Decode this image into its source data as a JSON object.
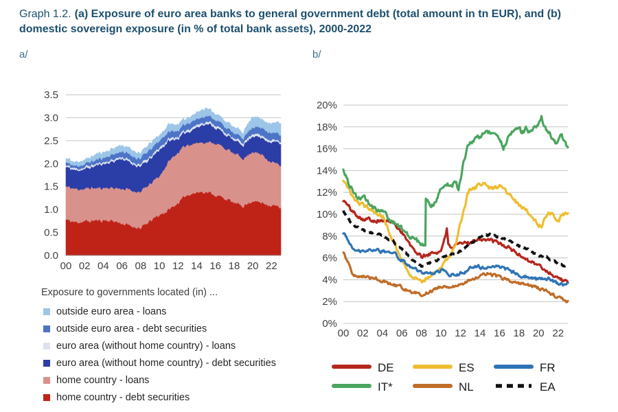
{
  "header": {
    "prefix": "Graph 1.2.",
    "title_bold": "(a) Exposure of euro area banks to general government debt (total amount in tn EUR), and (b) domestic sovereign exposure (in % of total bank assets), 2000-2022"
  },
  "panel_a_label": "a/",
  "panel_b_label": "b/",
  "chart_data": [
    {
      "id": "a",
      "type": "area",
      "stacked": true,
      "title": "Exposure of euro area banks to general government debt (total amount in tn EUR)",
      "x": [
        2000,
        2001,
        2002,
        2003,
        2004,
        2005,
        2006,
        2007,
        2008,
        2009,
        2010,
        2011,
        2012,
        2013,
        2014,
        2015,
        2016,
        2017,
        2018,
        2019,
        2020,
        2021,
        2022,
        2023
      ],
      "xtick_labels": [
        "00",
        "02",
        "04",
        "06",
        "08",
        "10",
        "12",
        "14",
        "16",
        "18",
        "20",
        "22"
      ],
      "ylim": [
        0,
        3.5
      ],
      "ytick_labels": [
        "0.0",
        "0.5",
        "1.0",
        "1.5",
        "2.0",
        "2.5",
        "3.0",
        "3.5"
      ],
      "grid": true,
      "legend_title": "Exposure to governments located (in) ...",
      "series": [
        {
          "key": "home-debt-securities",
          "label": "home country - debt securities",
          "color": "#bf2318",
          "values": [
            0.78,
            0.72,
            0.74,
            0.76,
            0.77,
            0.75,
            0.7,
            0.64,
            0.6,
            0.75,
            0.88,
            1.0,
            1.15,
            1.33,
            1.38,
            1.4,
            1.32,
            1.25,
            1.15,
            1.08,
            1.2,
            1.15,
            1.1,
            1.05
          ]
        },
        {
          "key": "home-loans",
          "label": "home country - loans",
          "color": "#d9918c",
          "values": [
            0.72,
            0.73,
            0.71,
            0.71,
            0.7,
            0.73,
            0.76,
            0.78,
            0.8,
            0.8,
            0.85,
            1.05,
            1.1,
            1.09,
            1.07,
            1.08,
            1.13,
            1.1,
            1.07,
            1.04,
            1.08,
            1.05,
            0.95,
            0.92
          ]
        },
        {
          "key": "ea-debt-securities",
          "label": "euro area (without home country) - debt securities",
          "color": "#2b3da7",
          "values": [
            0.43,
            0.4,
            0.43,
            0.48,
            0.53,
            0.57,
            0.66,
            0.58,
            0.55,
            0.55,
            0.57,
            0.45,
            0.3,
            0.28,
            0.35,
            0.4,
            0.35,
            0.3,
            0.28,
            0.3,
            0.34,
            0.35,
            0.43,
            0.48
          ]
        },
        {
          "key": "ea-loans",
          "label": "euro area (without home country) - loans",
          "color": "#dde2ee",
          "values": [
            0.04,
            0.04,
            0.04,
            0.04,
            0.04,
            0.04,
            0.04,
            0.04,
            0.04,
            0.05,
            0.05,
            0.05,
            0.05,
            0.05,
            0.05,
            0.05,
            0.05,
            0.05,
            0.05,
            0.05,
            0.05,
            0.05,
            0.04,
            0.04
          ]
        },
        {
          "key": "outside-ea-debt-securities",
          "label": "outside euro area - debt securities",
          "color": "#4d74c6",
          "values": [
            0.06,
            0.06,
            0.07,
            0.08,
            0.09,
            0.11,
            0.12,
            0.14,
            0.13,
            0.15,
            0.15,
            0.15,
            0.13,
            0.13,
            0.13,
            0.12,
            0.12,
            0.12,
            0.1,
            0.11,
            0.15,
            0.18,
            0.16,
            0.15
          ]
        },
        {
          "key": "outside-ea-loans",
          "label": "outside euro area - loans",
          "color": "#9cc5e8",
          "values": [
            0.09,
            0.08,
            0.09,
            0.11,
            0.12,
            0.12,
            0.14,
            0.12,
            0.12,
            0.14,
            0.12,
            0.15,
            0.13,
            0.12,
            0.14,
            0.17,
            0.13,
            0.13,
            0.13,
            0.12,
            0.23,
            0.17,
            0.2,
            0.26
          ]
        }
      ]
    },
    {
      "id": "b",
      "type": "line",
      "title": "Domestic sovereign exposure (in % of total bank assets)",
      "x": [
        2000,
        2001,
        2002,
        2003,
        2004,
        2005,
        2006,
        2007,
        2008,
        2009,
        2010,
        2011,
        2012,
        2013,
        2014,
        2015,
        2016,
        2017,
        2018,
        2019,
        2020,
        2021,
        2022,
        2023
      ],
      "xtick_labels": [
        "00",
        "02",
        "04",
        "06",
        "08",
        "10",
        "12",
        "14",
        "16",
        "18",
        "20",
        "22"
      ],
      "ylim": [
        0,
        20
      ],
      "ytick_labels": [
        "0%",
        "2%",
        "4%",
        "6%",
        "8%",
        "10%",
        "12%",
        "14%",
        "16%",
        "18%",
        "20%"
      ],
      "grid": true,
      "legend_position": "bottom",
      "series": [
        {
          "label": "DE",
          "color": "#b5271d",
          "x": [
            2000,
            2001,
            2002,
            2003,
            2004,
            2005,
            2006,
            2007,
            2008,
            2009,
            2010,
            2010.6,
            2010.75,
            2011,
            2012,
            2013,
            2014,
            2015,
            2016,
            2017,
            2018,
            2019,
            2020,
            2021,
            2022,
            2023
          ],
          "values": [
            11.3,
            10.2,
            9.6,
            9.5,
            9.4,
            9.3,
            8.4,
            6.9,
            6.1,
            6.4,
            6.6,
            8.7,
            7.1,
            7.0,
            7.2,
            7.5,
            7.8,
            7.6,
            7.3,
            6.9,
            6.3,
            5.8,
            5.3,
            4.7,
            4.2,
            3.7
          ]
        },
        {
          "label": "ES",
          "color": "#eebd31",
          "x": [
            2000,
            2001,
            2002,
            2003,
            2004,
            2005,
            2006,
            2007,
            2008,
            2009,
            2010,
            2011,
            2011.5,
            2012,
            2012.7,
            2013,
            2014,
            2014.4,
            2015,
            2016,
            2017,
            2018,
            2019,
            2020,
            2020.3,
            2021,
            2021.6,
            2022,
            2022.5,
            2023
          ],
          "values": [
            13.1,
            11.5,
            10.8,
            10.4,
            9.8,
            7.8,
            5.8,
            4.3,
            3.9,
            4.4,
            5.2,
            6.3,
            7.0,
            9.3,
            11.8,
            12.2,
            12.7,
            13.0,
            12.4,
            12.6,
            11.8,
            10.8,
            10.2,
            9.0,
            8.9,
            10.3,
            9.9,
            9.3,
            10.0,
            9.9
          ]
        },
        {
          "label": "FR",
          "color": "#2e74b6",
          "values": [
            8.3,
            6.7,
            6.6,
            6.7,
            6.6,
            6.5,
            5.8,
            5.1,
            4.7,
            4.5,
            4.9,
            4.4,
            4.6,
            5.0,
            5.2,
            5.0,
            5.2,
            4.8,
            4.4,
            4.3,
            4.0,
            4.1,
            3.6,
            3.6
          ]
        },
        {
          "label": "IT*",
          "color": "#4ba55f",
          "x": [
            2000,
            2000.5,
            2001,
            2001.5,
            2002,
            2003,
            2004,
            2005,
            2006,
            2007,
            2008,
            2008.4,
            2008.45,
            2008.7,
            2009,
            2009.5,
            2010,
            2010.5,
            2011,
            2011.5,
            2011.8,
            2012.3,
            2012.8,
            2013,
            2013.5,
            2014,
            2014.5,
            2015,
            2015.3,
            2016,
            2016.4,
            2017,
            2017.5,
            2018,
            2018.3,
            2018.7,
            2019,
            2019.5,
            2020,
            2020.3,
            2020.7,
            2021,
            2021.5,
            2021.8,
            2022.3,
            2022.7,
            2023
          ],
          "values": [
            14.2,
            12.9,
            12.1,
            11.4,
            11.6,
            10.6,
            10.2,
            9.4,
            8.6,
            7.9,
            7.3,
            7.0,
            11.4,
            11.3,
            10.6,
            11.3,
            12.2,
            12.9,
            12.5,
            13.0,
            12.3,
            14.8,
            16.3,
            16.6,
            16.9,
            17.2,
            17.4,
            17.6,
            17.5,
            16.9,
            16.1,
            17.3,
            17.6,
            17.9,
            17.4,
            17.8,
            17.5,
            17.8,
            18.1,
            18.8,
            18.0,
            17.5,
            16.9,
            16.5,
            17.2,
            16.7,
            16.1
          ]
        },
        {
          "label": "NL",
          "color": "#bf6d28",
          "values": [
            6.6,
            4.4,
            4.3,
            4.2,
            3.9,
            3.5,
            3.3,
            2.9,
            2.6,
            2.9,
            3.4,
            3.3,
            3.5,
            4.0,
            4.4,
            4.6,
            4.2,
            4.0,
            3.7,
            3.5,
            3.2,
            2.9,
            2.4,
            2.0
          ]
        },
        {
          "label": "EA",
          "color": "#111111",
          "style": "dashed",
          "values": [
            10.3,
            9.0,
            8.5,
            8.3,
            8.0,
            7.6,
            6.8,
            5.9,
            5.3,
            5.6,
            6.0,
            6.3,
            6.6,
            7.3,
            7.9,
            8.1,
            7.9,
            7.6,
            7.1,
            6.7,
            6.2,
            6.0,
            5.5,
            5.1
          ]
        }
      ]
    }
  ]
}
